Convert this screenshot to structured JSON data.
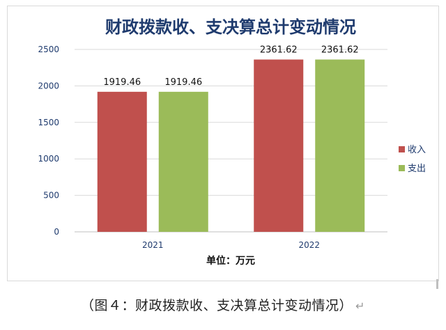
{
  "chart_data": {
    "type": "bar",
    "title": "财政拨款收、支决算总计变动情况",
    "categories": [
      "2021",
      "2022"
    ],
    "series": [
      {
        "name": "收入",
        "values": [
          1919.46,
          2361.62
        ],
        "color": "#c0504d"
      },
      {
        "name": "支出",
        "values": [
          1919.46,
          2361.62
        ],
        "color": "#9bbb59"
      }
    ],
    "data_labels": [
      [
        "1919.46",
        "2361.62"
      ],
      [
        "1919.46",
        "2361.62"
      ]
    ],
    "xlabel": "单位：万元",
    "ylabel": "",
    "ylim": [
      0,
      2500
    ],
    "yticks": [
      0,
      500,
      1000,
      1500,
      2000,
      2500
    ],
    "grid": true,
    "legend_position": "right"
  },
  "caption": {
    "text": "（图４：财政拨款收、支决算总计变动情况）",
    "enter_mark": "↵"
  }
}
